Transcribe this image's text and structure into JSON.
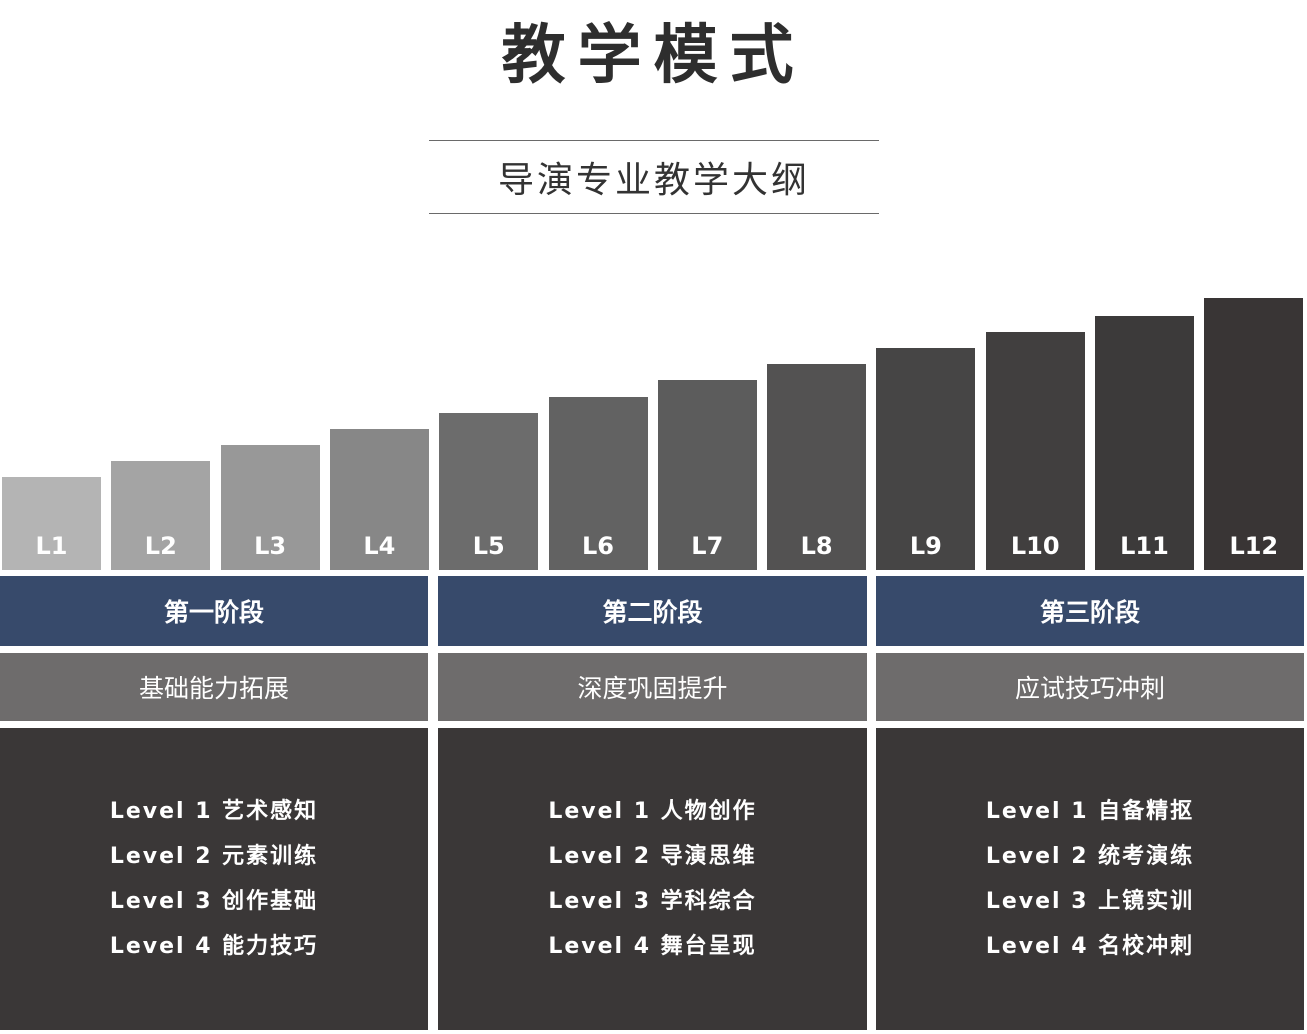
{
  "title": "教学模式",
  "subtitle": "导演专业教学大纲",
  "colors": {
    "stage_header": "#374a6b",
    "stage_sub": "#6e6c6c",
    "stage_body": "#3a3737",
    "title_text": "#2e2e2e"
  },
  "chart_data": {
    "type": "bar",
    "categories": [
      "L1",
      "L2",
      "L3",
      "L4",
      "L5",
      "L6",
      "L7",
      "L8",
      "L9",
      "L10",
      "L11",
      "L12"
    ],
    "values": [
      1,
      2,
      3,
      4,
      5,
      6,
      7,
      8,
      9,
      10,
      11,
      12
    ],
    "bar_colors": [
      "#b4b4b4",
      "#a4a4a4",
      "#989898",
      "#878787",
      "#6c6c6c",
      "#626262",
      "#5c5c5c",
      "#535252",
      "#464545",
      "#413f3f",
      "#3c3a3a",
      "#393535"
    ]
  },
  "stages": [
    {
      "name": "第一阶段",
      "subtitle": "基础能力拓展",
      "levels": [
        "Level 1 艺术感知",
        "Level 2 元素训练",
        "Level 3 创作基础",
        "Level 4 能力技巧"
      ]
    },
    {
      "name": "第二阶段",
      "subtitle": "深度巩固提升",
      "levels": [
        "Level 1 人物创作",
        "Level 2 导演思维",
        "Level 3 学科综合",
        "Level 4 舞台呈现"
      ]
    },
    {
      "name": "第三阶段",
      "subtitle": "应试技巧冲刺",
      "levels": [
        "Level 1 自备精抠",
        "Level 2 统考演练",
        "Level 3 上镜实训",
        "Level 4 名校冲刺"
      ]
    }
  ]
}
